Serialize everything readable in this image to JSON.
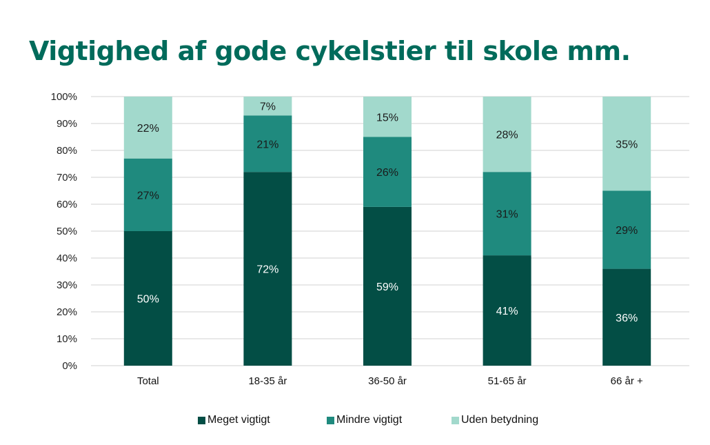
{
  "chart_data": {
    "type": "bar",
    "stacked": true,
    "title": "Vigtighed af gode cykelstier til skole mm.",
    "xlabel": "",
    "ylabel": "",
    "ylim": [
      0,
      100
    ],
    "yticks": [
      "0%",
      "10%",
      "20%",
      "30%",
      "40%",
      "50%",
      "60%",
      "70%",
      "80%",
      "90%",
      "100%"
    ],
    "grid": true,
    "legend_position": "bottom",
    "categories": [
      "Total",
      "18-35 år",
      "36-50 år",
      "51-65 år",
      "66 år +"
    ],
    "series": [
      {
        "name": "Meget vigtigt",
        "color": "#034e45",
        "label_color": "#ffffff",
        "values": [
          50,
          72,
          59,
          41,
          36
        ],
        "labels": [
          "50%",
          "72%",
          "59%",
          "41%",
          "36%"
        ]
      },
      {
        "name": "Mindre vigtigt",
        "color": "#1f8a7e",
        "label_color": "#1a1a1a",
        "values": [
          27,
          21,
          26,
          31,
          29
        ],
        "labels": [
          "27%",
          "21%",
          "26%",
          "31%",
          "29%"
        ]
      },
      {
        "name": "Uden betydning",
        "color": "#a2d9cc",
        "label_color": "#1a1a1a",
        "values": [
          22,
          7,
          15,
          28,
          35
        ],
        "labels": [
          "22%",
          "7%",
          "15%",
          "28%",
          "35%"
        ]
      }
    ]
  }
}
